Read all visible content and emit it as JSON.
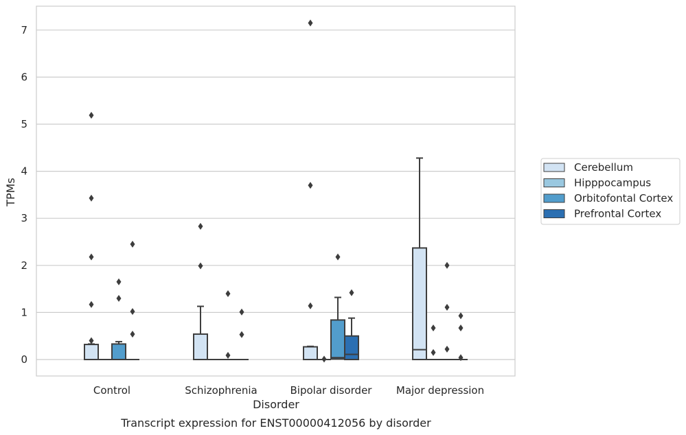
{
  "caption": "Transcript expression for ENST00000412056 by disorder",
  "chart_data": {
    "type": "box",
    "xlabel": "Disorder",
    "ylabel": "TPMs",
    "ylim": [
      -0.35,
      7.5
    ],
    "yticks": [
      0,
      1,
      2,
      3,
      4,
      5,
      6,
      7
    ],
    "grid": "horizontal",
    "legend_position": "right",
    "categories": [
      "Control",
      "Schizophrenia",
      "Bipolar disorder",
      "Major depression"
    ],
    "series": [
      {
        "name": "Cerebellum",
        "color": "#d2e3f3"
      },
      {
        "name": "Hipppocampus",
        "color": "#9ac8e0"
      },
      {
        "name": "Orbitofontal Cortex",
        "color": "#529dcc"
      },
      {
        "name": "Prefrontal Cortex",
        "color": "#2b6fb2"
      }
    ],
    "boxes": [
      {
        "category": "Control",
        "series": "Cerebellum",
        "whislo": 0,
        "q1": 0,
        "med": 0,
        "q3": 0.32,
        "whishi": 0.33,
        "fliers": [
          5.19,
          3.43,
          2.18,
          1.17,
          0.4
        ]
      },
      {
        "category": "Control",
        "series": "Hipppocampus",
        "whislo": 0,
        "q1": 0,
        "med": 0,
        "q3": 0,
        "whishi": 0,
        "fliers": []
      },
      {
        "category": "Control",
        "series": "Orbitofontal Cortex",
        "whislo": 0,
        "q1": 0,
        "med": 0,
        "q3": 0.33,
        "whishi": 0.38,
        "fliers": [
          1.65,
          1.3
        ]
      },
      {
        "category": "Control",
        "series": "Prefrontal Cortex",
        "whislo": 0,
        "q1": 0,
        "med": 0,
        "q3": 0,
        "whishi": 0,
        "fliers": [
          2.45,
          1.02,
          0.54
        ]
      },
      {
        "category": "Schizophrenia",
        "series": "Cerebellum",
        "whislo": 0,
        "q1": 0,
        "med": 0,
        "q3": 0.54,
        "whishi": 1.13,
        "fliers": [
          2.83,
          1.99
        ]
      },
      {
        "category": "Schizophrenia",
        "series": "Hipppocampus",
        "whislo": 0,
        "q1": 0,
        "med": 0,
        "q3": 0,
        "whishi": 0,
        "fliers": []
      },
      {
        "category": "Schizophrenia",
        "series": "Orbitofontal Cortex",
        "whislo": 0,
        "q1": 0,
        "med": 0,
        "q3": 0,
        "whishi": 0,
        "fliers": [
          1.4,
          0.09
        ]
      },
      {
        "category": "Schizophrenia",
        "series": "Prefrontal Cortex",
        "whislo": 0,
        "q1": 0,
        "med": 0,
        "q3": 0,
        "whishi": 0,
        "fliers": [
          1.01,
          0.53
        ]
      },
      {
        "category": "Bipolar disorder",
        "series": "Cerebellum",
        "whislo": 0,
        "q1": 0,
        "med": 0,
        "q3": 0.27,
        "whishi": 0.28,
        "fliers": [
          7.15,
          3.7,
          1.14
        ]
      },
      {
        "category": "Bipolar disorder",
        "series": "Hipppocampus",
        "whislo": 0,
        "q1": 0,
        "med": 0,
        "q3": 0,
        "whishi": 0,
        "fliers": [
          0.01
        ]
      },
      {
        "category": "Bipolar disorder",
        "series": "Orbitofontal Cortex",
        "whislo": 0,
        "q1": 0.01,
        "med": 0.04,
        "q3": 0.84,
        "whishi": 1.32,
        "fliers": [
          2.18
        ]
      },
      {
        "category": "Bipolar disorder",
        "series": "Prefrontal Cortex",
        "whislo": 0,
        "q1": 0,
        "med": 0.11,
        "q3": 0.5,
        "whishi": 0.88,
        "fliers": [
          1.42
        ]
      },
      {
        "category": "Major depression",
        "series": "Cerebellum",
        "whislo": 0,
        "q1": 0,
        "med": 0.21,
        "q3": 2.37,
        "whishi": 4.28,
        "fliers": []
      },
      {
        "category": "Major depression",
        "series": "Hipppocampus",
        "whislo": 0,
        "q1": 0,
        "med": 0,
        "q3": 0,
        "whishi": 0,
        "fliers": [
          0.67,
          0.15
        ]
      },
      {
        "category": "Major depression",
        "series": "Orbitofontal Cortex",
        "whislo": 0,
        "q1": 0,
        "med": 0,
        "q3": 0,
        "whishi": 0,
        "fliers": [
          2.0,
          1.11,
          0.22
        ]
      },
      {
        "category": "Major depression",
        "series": "Prefrontal Cortex",
        "whislo": 0,
        "q1": 0,
        "med": 0,
        "q3": 0,
        "whishi": 0,
        "fliers": [
          0.93,
          0.67,
          0.04
        ]
      }
    ]
  }
}
